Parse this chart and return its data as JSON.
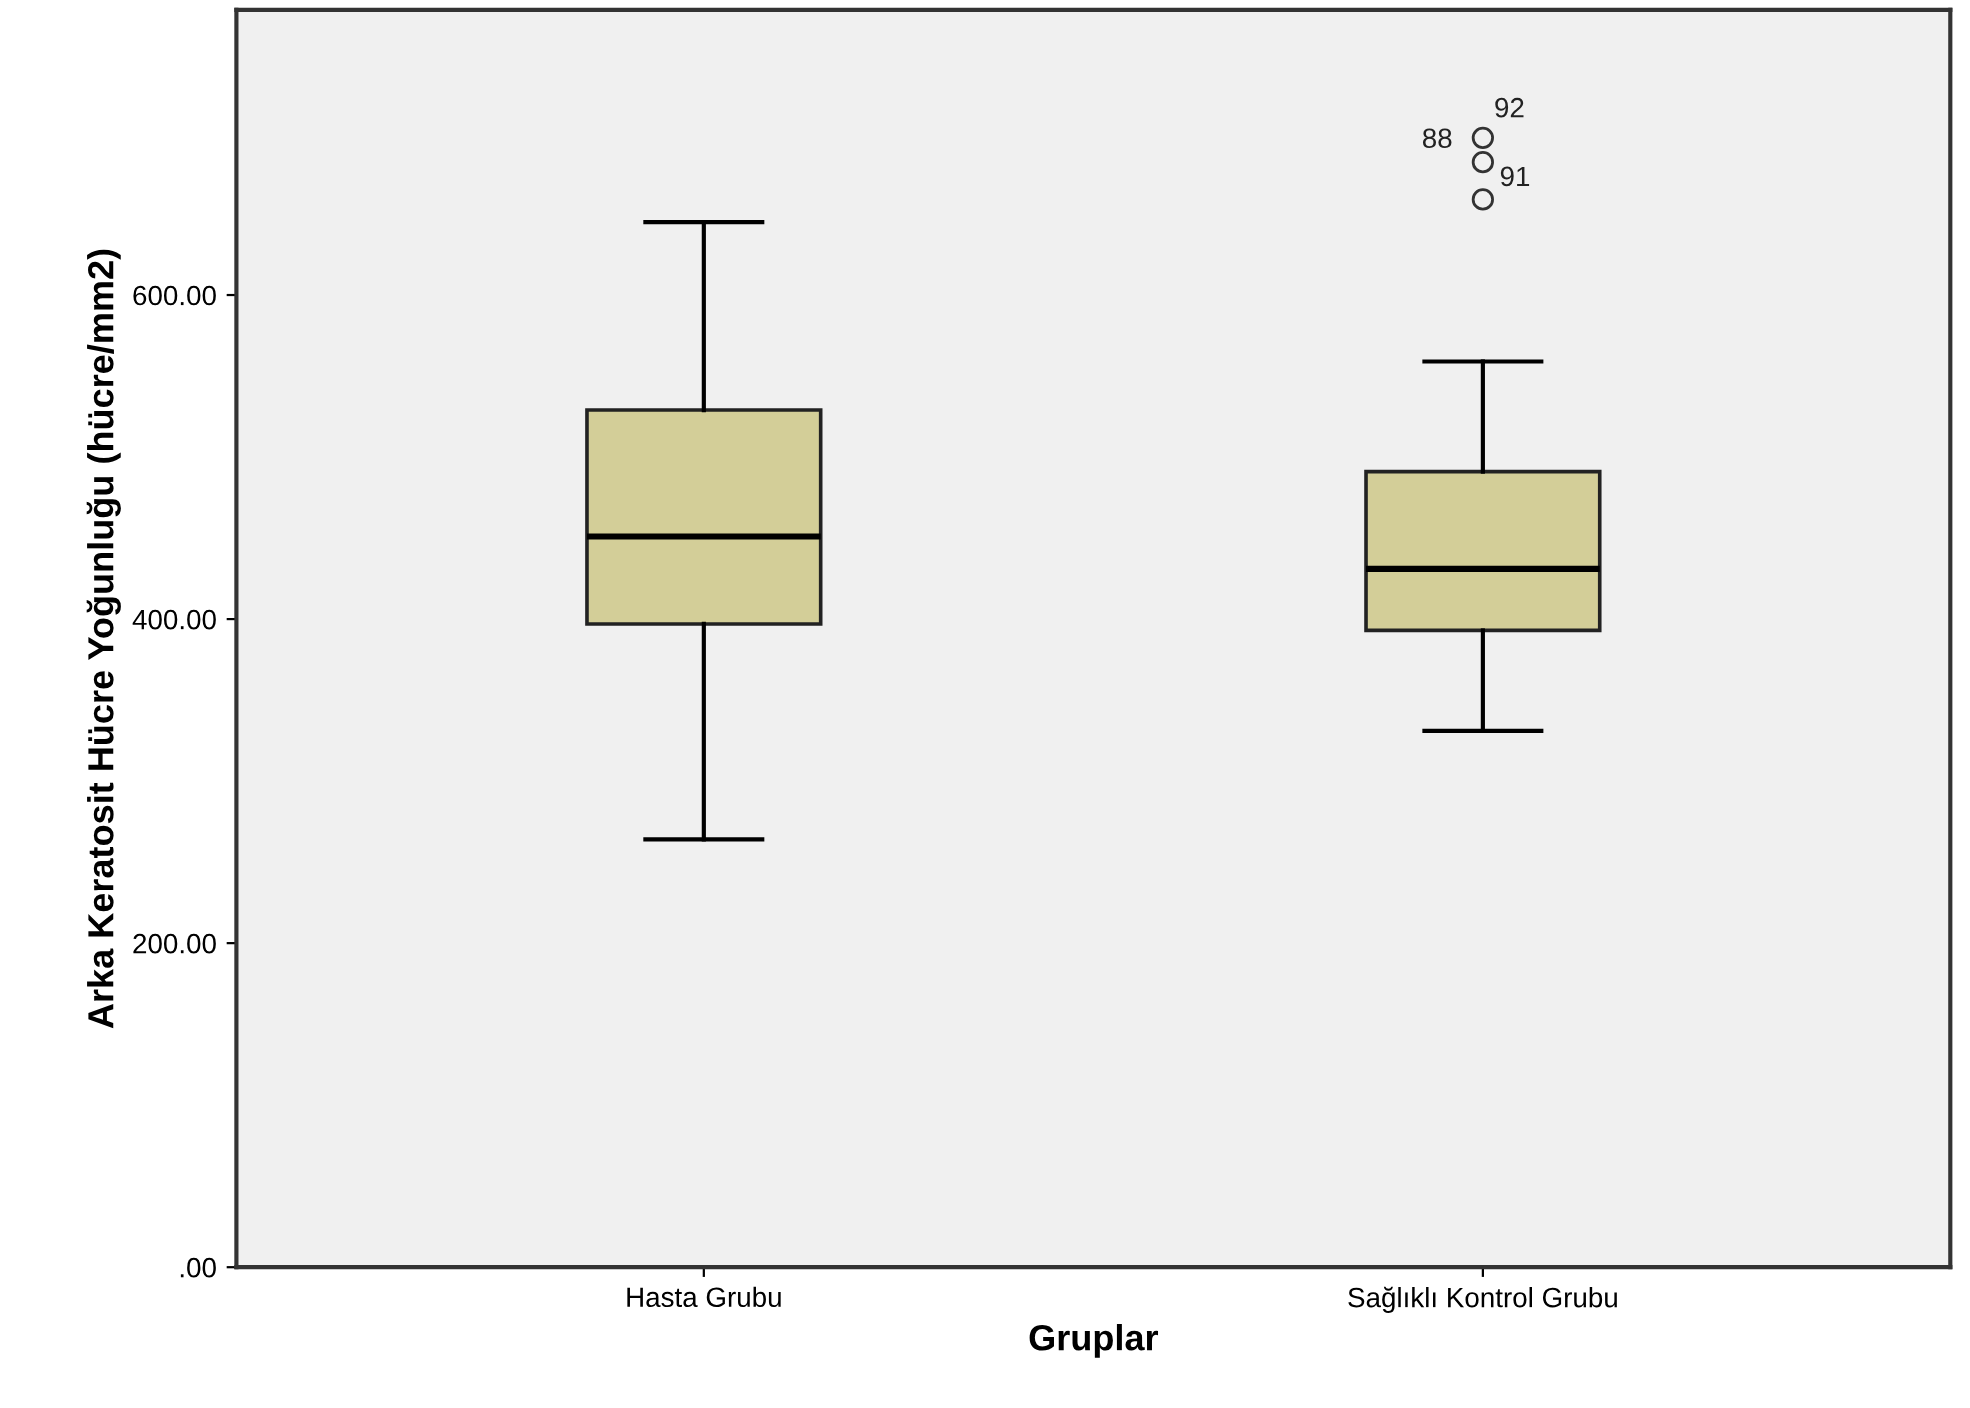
{
  "chart_data": {
    "type": "box",
    "xlabel": "Gruplar",
    "ylabel": "Arka Keratosit Hücre Yoğunluğu (hücre/mm2)",
    "categories": [
      "Hasta Grubu",
      "Sağlıklı Kontrol Grubu"
    ],
    "color": "#d3ce98",
    "boxes": [
      {
        "low": 264,
        "q1": 397,
        "median": 451,
        "q3": 529,
        "high": 645
      },
      {
        "low": 331,
        "q1": 393,
        "median": 431,
        "q3": 491,
        "high": 559,
        "outliers": [
          659,
          682,
          697
        ]
      }
    ],
    "annotations": [
      "92",
      "88",
      "91"
    ],
    "ylim": [
      0,
      776
    ],
    "yticks": [
      {
        "value": 0,
        "label": ".00"
      },
      {
        "value": 200,
        "label": "200.00"
      },
      {
        "value": 400,
        "label": "400.00"
      },
      {
        "value": 600,
        "label": "600.00"
      }
    ],
    "grid": false
  }
}
